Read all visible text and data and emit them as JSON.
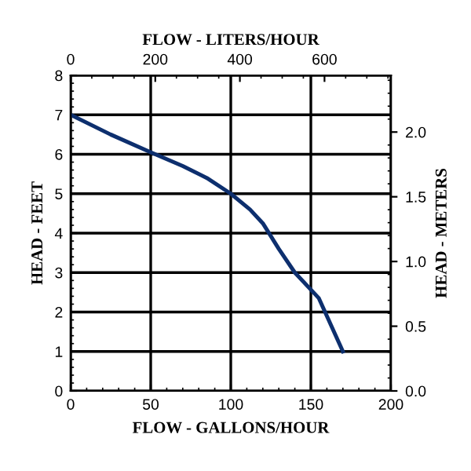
{
  "chart_data": {
    "type": "line",
    "xlabel": "FLOW - GALLONS/HOUR",
    "ylabel": "HEAD - FEET",
    "x2label": "FLOW - LITERS/HOUR",
    "y2label": "HEAD - METERS",
    "x": [
      0,
      25,
      50,
      70,
      85,
      100,
      112,
      120,
      130,
      140,
      155,
      170
    ],
    "series": [
      {
        "color": "#0d2f6e",
        "values": [
          7.0,
          6.5,
          6.05,
          5.7,
          5.4,
          5.0,
          4.6,
          4.25,
          3.6,
          3.0,
          2.35,
          1.0
        ]
      }
    ],
    "xlim": [
      0,
      200
    ],
    "xticks": [
      0,
      50,
      100,
      150,
      200
    ],
    "ylim": [
      0,
      8
    ],
    "yticks": [
      0,
      1,
      2,
      3,
      4,
      5,
      6,
      7,
      8
    ],
    "x2lim": [
      0,
      757
    ],
    "x2ticks": [
      0,
      200,
      400,
      600
    ],
    "y2lim": [
      0,
      2.438
    ],
    "y2ticks": [
      {
        "value": 0,
        "label": "0.0"
      },
      {
        "value": 0.5,
        "label": "0.5"
      },
      {
        "value": 1,
        "label": "1.0"
      },
      {
        "value": 1.5,
        "label": "1.5"
      },
      {
        "value": 2,
        "label": "2.0"
      }
    ],
    "grid": true,
    "marker": "none",
    "line_style": "solid"
  }
}
